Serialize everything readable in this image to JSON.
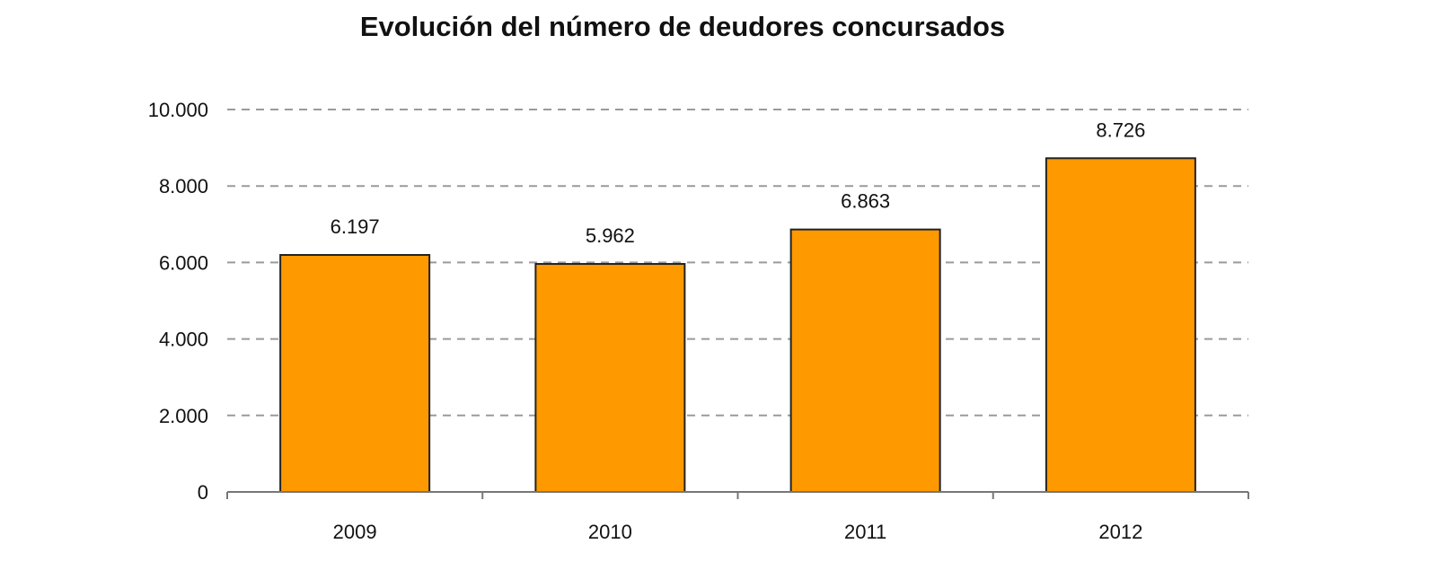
{
  "chart_data": {
    "type": "bar",
    "title": "Evolución del número de deudores concursados",
    "xlabel": "",
    "ylabel": "",
    "categories": [
      "2009",
      "2010",
      "2011",
      "2012"
    ],
    "values": [
      6197,
      5962,
      6863,
      8726
    ],
    "data_labels": [
      "6.197",
      "5.962",
      "6.863",
      "8.726"
    ],
    "ylim": [
      0,
      10000
    ],
    "yticks": [
      0,
      2000,
      4000,
      6000,
      8000,
      10000
    ],
    "ytick_labels": [
      "0",
      "2.000",
      "4.000",
      "6.000",
      "8.000",
      "10.000"
    ],
    "grid": true,
    "grid_style": "dashed",
    "legend": "none",
    "colors": {
      "bar": "#FF9900",
      "bar_border": "#222222",
      "grid": "#9a9a9a",
      "axis": "#777777"
    }
  }
}
